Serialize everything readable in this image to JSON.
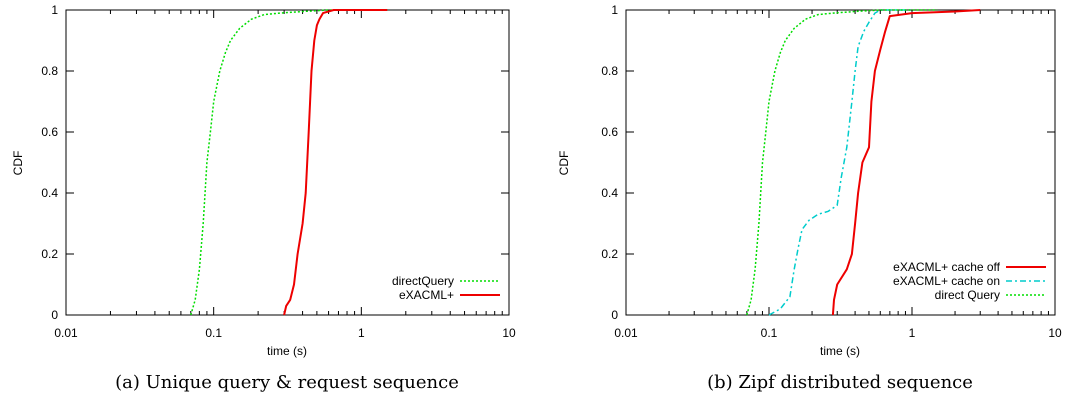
{
  "chart_data": [
    {
      "type": "line",
      "caption": "(a) Unique query & request sequence",
      "xlabel": "time (s)",
      "ylabel": "CDF",
      "x_scale": "log",
      "xlim": [
        0.01,
        10
      ],
      "ylim": [
        0,
        1
      ],
      "x_ticks": [
        0.01,
        0.1,
        1,
        10
      ],
      "x_tick_labels": [
        "0.01",
        "0.1",
        "1",
        "10"
      ],
      "y_ticks": [
        0,
        0.2,
        0.4,
        0.6,
        0.8,
        1
      ],
      "y_tick_labels": [
        "0",
        "0.2",
        "0.4",
        "0.6",
        "0.8",
        "1"
      ],
      "grid": false,
      "legend_position": "bottom-right",
      "series": [
        {
          "name": "directQuery",
          "color": "#00dd00",
          "dash": "dotted",
          "points": [
            [
              0.07,
              0
            ],
            [
              0.075,
              0.05
            ],
            [
              0.08,
              0.15
            ],
            [
              0.085,
              0.3
            ],
            [
              0.09,
              0.5
            ],
            [
              0.095,
              0.6
            ],
            [
              0.1,
              0.7
            ],
            [
              0.11,
              0.8
            ],
            [
              0.12,
              0.86
            ],
            [
              0.13,
              0.9
            ],
            [
              0.15,
              0.94
            ],
            [
              0.18,
              0.97
            ],
            [
              0.22,
              0.985
            ],
            [
              0.28,
              0.99
            ],
            [
              0.4,
              0.995
            ],
            [
              0.6,
              1
            ],
            [
              1.5,
              1
            ]
          ]
        },
        {
          "name": "eXACML+",
          "color": "#ee0000",
          "dash": "solid",
          "points": [
            [
              0.3,
              0
            ],
            [
              0.31,
              0.03
            ],
            [
              0.33,
              0.05
            ],
            [
              0.35,
              0.1
            ],
            [
              0.37,
              0.2
            ],
            [
              0.4,
              0.3
            ],
            [
              0.42,
              0.4
            ],
            [
              0.43,
              0.5
            ],
            [
              0.44,
              0.6
            ],
            [
              0.45,
              0.7
            ],
            [
              0.46,
              0.8
            ],
            [
              0.48,
              0.9
            ],
            [
              0.5,
              0.95
            ],
            [
              0.52,
              0.97
            ],
            [
              0.55,
              0.99
            ],
            [
              0.65,
              1
            ],
            [
              1.5,
              1
            ]
          ]
        }
      ]
    },
    {
      "type": "line",
      "caption": "(b) Zipf distributed sequence",
      "xlabel": "time (s)",
      "ylabel": "CDF",
      "x_scale": "log",
      "xlim": [
        0.01,
        10
      ],
      "ylim": [
        0,
        1
      ],
      "x_ticks": [
        0.01,
        0.1,
        1,
        10
      ],
      "x_tick_labels": [
        "0.01",
        "0.1",
        "1",
        "10"
      ],
      "y_ticks": [
        0,
        0.2,
        0.4,
        0.6,
        0.8,
        1
      ],
      "y_tick_labels": [
        "0",
        "0.2",
        "0.4",
        "0.6",
        "0.8",
        "1"
      ],
      "grid": false,
      "legend_position": "bottom-right",
      "series": [
        {
          "name": "eXACML+ cache off",
          "color": "#ee0000",
          "dash": "solid",
          "points": [
            [
              0.28,
              0
            ],
            [
              0.285,
              0.05
            ],
            [
              0.3,
              0.1
            ],
            [
              0.35,
              0.15
            ],
            [
              0.38,
              0.2
            ],
            [
              0.4,
              0.3
            ],
            [
              0.42,
              0.4
            ],
            [
              0.45,
              0.5
            ],
            [
              0.5,
              0.55
            ],
            [
              0.52,
              0.7
            ],
            [
              0.55,
              0.8
            ],
            [
              0.6,
              0.87
            ],
            [
              0.65,
              0.93
            ],
            [
              0.7,
              0.98
            ],
            [
              1.0,
              0.99
            ],
            [
              2.0,
              0.995
            ],
            [
              3.0,
              1
            ]
          ]
        },
        {
          "name": "eXACML+ cache on",
          "color": "#00cccc",
          "dash": "dashdot",
          "points": [
            [
              0.1,
              0
            ],
            [
              0.12,
              0.02
            ],
            [
              0.14,
              0.06
            ],
            [
              0.15,
              0.15
            ],
            [
              0.16,
              0.22
            ],
            [
              0.17,
              0.28
            ],
            [
              0.19,
              0.31
            ],
            [
              0.22,
              0.33
            ],
            [
              0.26,
              0.34
            ],
            [
              0.3,
              0.36
            ],
            [
              0.32,
              0.45
            ],
            [
              0.35,
              0.55
            ],
            [
              0.38,
              0.7
            ],
            [
              0.4,
              0.8
            ],
            [
              0.42,
              0.88
            ],
            [
              0.46,
              0.93
            ],
            [
              0.5,
              0.96
            ],
            [
              0.55,
              0.99
            ],
            [
              0.6,
              1
            ],
            [
              1.0,
              1
            ]
          ]
        },
        {
          "name": "direct Query",
          "color": "#00dd00",
          "dash": "dotted",
          "points": [
            [
              0.07,
              0
            ],
            [
              0.075,
              0.05
            ],
            [
              0.08,
              0.15
            ],
            [
              0.085,
              0.3
            ],
            [
              0.09,
              0.5
            ],
            [
              0.095,
              0.6
            ],
            [
              0.1,
              0.7
            ],
            [
              0.11,
              0.8
            ],
            [
              0.12,
              0.86
            ],
            [
              0.13,
              0.9
            ],
            [
              0.15,
              0.94
            ],
            [
              0.18,
              0.97
            ],
            [
              0.22,
              0.985
            ],
            [
              0.28,
              0.99
            ],
            [
              0.4,
              0.995
            ],
            [
              0.6,
              1
            ],
            [
              1.5,
              1
            ]
          ]
        }
      ]
    }
  ]
}
